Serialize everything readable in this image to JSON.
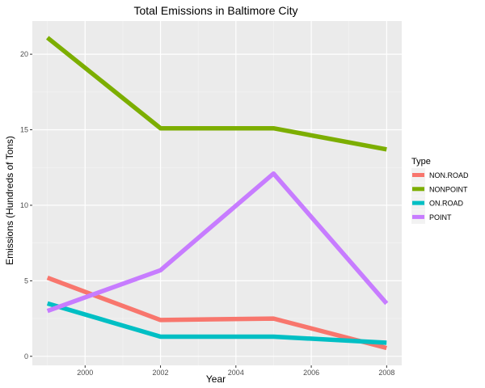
{
  "chart_data": {
    "type": "line",
    "title": "Total Emissions in Baltimore City",
    "xlabel": "Year",
    "ylabel": "Emissions (Hundreds of Tons)",
    "x": [
      1999,
      2002,
      2005,
      2008
    ],
    "xlim": [
      1998.6,
      2008.4
    ],
    "ylim": [
      -0.6,
      22.2
    ],
    "x_ticks": [
      2000,
      2002,
      2004,
      2006,
      2008
    ],
    "x_tick_labels": [
      "2000",
      "2002",
      "2004",
      "2006",
      "2008"
    ],
    "y_ticks": [
      0,
      5,
      10,
      15,
      20
    ],
    "y_tick_labels": [
      "0",
      "5",
      "10",
      "15",
      "20"
    ],
    "grid": true,
    "legend": {
      "title": "Type",
      "position": "right"
    },
    "series": [
      {
        "name": "NON.ROAD",
        "color": "#F8766D",
        "values": [
          5.2,
          2.4,
          2.5,
          0.55
        ]
      },
      {
        "name": "NONPOINT",
        "color": "#7CAE00",
        "values": [
          21.1,
          15.1,
          15.1,
          13.7
        ]
      },
      {
        "name": "ON.ROAD",
        "color": "#00BFC4",
        "values": [
          3.5,
          1.3,
          1.3,
          0.9
        ]
      },
      {
        "name": "POINT",
        "color": "#C77CFF",
        "values": [
          3.0,
          5.7,
          12.1,
          3.5
        ]
      }
    ]
  }
}
